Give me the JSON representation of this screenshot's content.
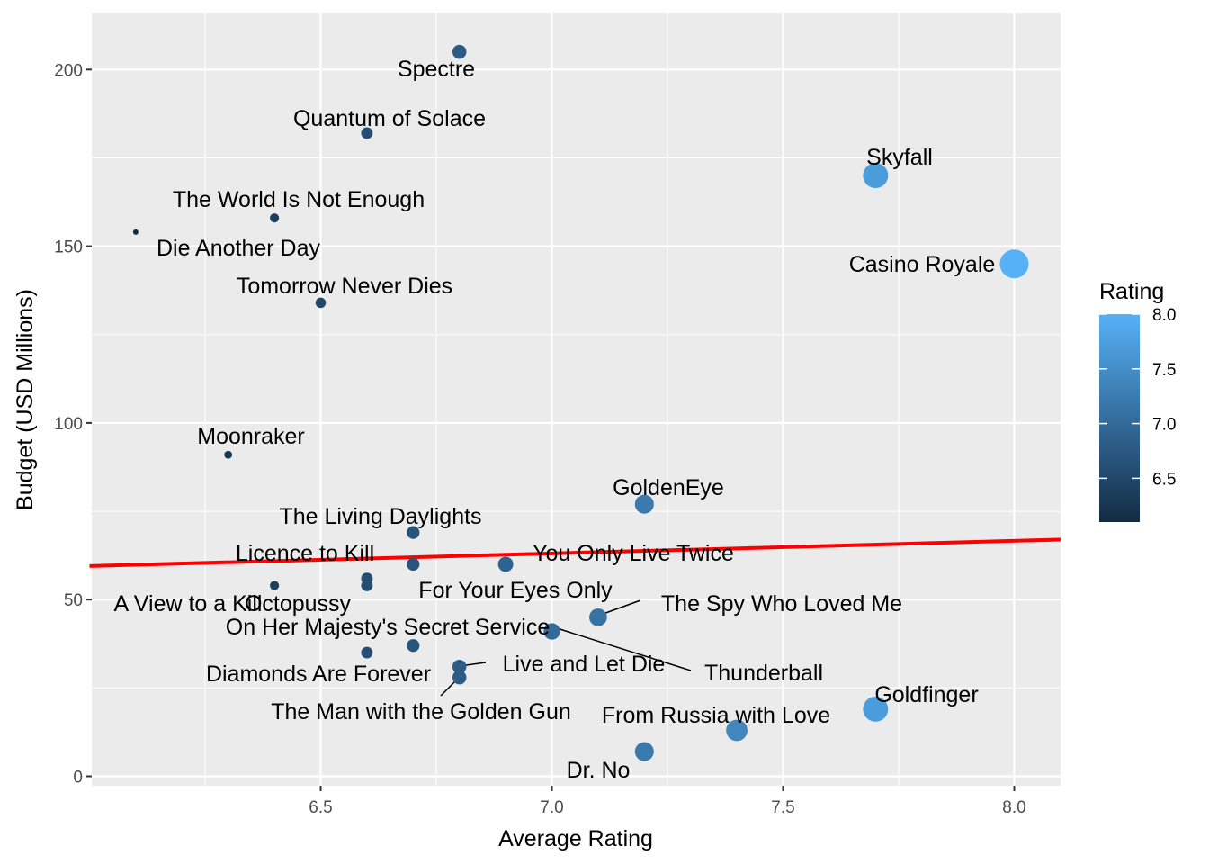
{
  "chart_data": {
    "type": "scatter",
    "xlabel": "Average Rating",
    "ylabel": "Budget (USD Millions)",
    "xlim": [
      6.0,
      8.1
    ],
    "ylim": [
      -3,
      215
    ],
    "x_ticks": [
      6.5,
      7.0,
      7.5,
      8.0
    ],
    "x_tick_labels": [
      "6.5",
      "7.0",
      "7.5",
      "8.0"
    ],
    "y_ticks": [
      0,
      50,
      100,
      150,
      200
    ],
    "y_tick_labels": [
      "0",
      "50",
      "100",
      "150",
      "200"
    ],
    "grid": true,
    "points": [
      {
        "label": "Spectre",
        "x": 6.8,
        "y": 205,
        "rating": 6.8
      },
      {
        "label": "Quantum of Solace",
        "x": 6.6,
        "y": 182,
        "rating": 6.6
      },
      {
        "label": "Skyfall",
        "x": 7.7,
        "y": 170,
        "rating": 7.7
      },
      {
        "label": "The World Is Not Enough",
        "x": 6.4,
        "y": 158,
        "rating": 6.4
      },
      {
        "label": "Die Another Day",
        "x": 6.1,
        "y": 154,
        "rating": 6.1
      },
      {
        "label": "Casino Royale",
        "x": 8.0,
        "y": 145,
        "rating": 8.0
      },
      {
        "label": "Tomorrow Never Dies",
        "x": 6.5,
        "y": 134,
        "rating": 6.5
      },
      {
        "label": "Moonraker",
        "x": 6.3,
        "y": 91,
        "rating": 6.3
      },
      {
        "label": "GoldenEye",
        "x": 7.2,
        "y": 77,
        "rating": 7.2
      },
      {
        "label": "The Living Daylights",
        "x": 6.7,
        "y": 69,
        "rating": 6.7
      },
      {
        "label": "Licence to Kill",
        "x": 6.6,
        "y": 56,
        "rating": 6.6
      },
      {
        "label": "You Only Live Twice",
        "x": 6.9,
        "y": 60,
        "rating": 6.9
      },
      {
        "label": "For Your Eyes Only",
        "x": 6.7,
        "y": 60,
        "rating": 6.7
      },
      {
        "label": "A View to a Kill",
        "x": 6.4,
        "y": 54,
        "rating": 6.4
      },
      {
        "label": "Octopussy",
        "x": 6.6,
        "y": 54,
        "rating": 6.6
      },
      {
        "label": "The Spy Who Loved Me",
        "x": 7.1,
        "y": 45,
        "rating": 7.1
      },
      {
        "label": "On Her Majesty's Secret Service",
        "x": 6.7,
        "y": 37,
        "rating": 6.7
      },
      {
        "label": "Thunderball",
        "x": 7.0,
        "y": 41,
        "rating": 7.0
      },
      {
        "label": "Diamonds Are Forever",
        "x": 6.6,
        "y": 35,
        "rating": 6.6
      },
      {
        "label": "Live and Let Die",
        "x": 6.8,
        "y": 31,
        "rating": 6.8
      },
      {
        "label": "The Man with the Golden Gun",
        "x": 6.8,
        "y": 28,
        "rating": 6.8
      },
      {
        "label": "Goldfinger",
        "x": 7.7,
        "y": 19,
        "rating": 7.7
      },
      {
        "label": "From Russia with Love",
        "x": 7.4,
        "y": 13,
        "rating": 7.4
      },
      {
        "label": "Dr. No",
        "x": 7.2,
        "y": 7,
        "rating": 7.2
      }
    ],
    "trend_line": {
      "x": [
        6.0,
        8.1
      ],
      "y": [
        59.5,
        67.0
      ],
      "color": "#ff0000"
    },
    "legend": {
      "title": "Rating",
      "placement": "right",
      "ticks": [
        6.5,
        7.0,
        7.5,
        8.0
      ],
      "tick_labels": [
        "6.5",
        "7.0",
        "7.5",
        "8.0"
      ],
      "range": [
        6.1,
        8.0
      ],
      "color_low": "#132b43",
      "color_high": "#56b1f7"
    },
    "colors": {
      "panel": "#ebebeb",
      "grid": "#ffffff",
      "text": "#000000",
      "tick_text": "#4d4d4d"
    }
  }
}
